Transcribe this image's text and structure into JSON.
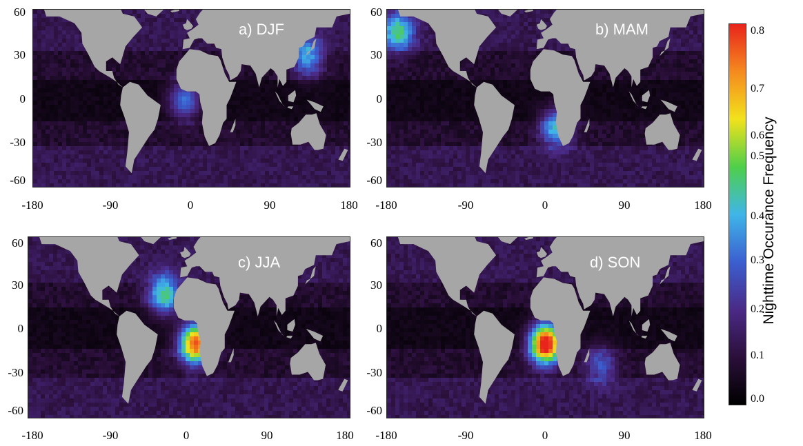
{
  "figure": {
    "colorbar": {
      "label": "Nighttime Occurance Frequency",
      "ticks": [
        "0.8",
        "0.7",
        "0.6",
        "0.5",
        "0.4",
        "0.3",
        "0.2",
        "0.1",
        "0.0"
      ],
      "range": [
        0.0,
        0.8
      ],
      "colors": [
        "#000000",
        "#2b0f3a",
        "#4a2a86",
        "#3b5fd0",
        "#3fb6e8",
        "#4fcf4a",
        "#f2e21c",
        "#f58a1e",
        "#e8241c"
      ]
    },
    "axes": {
      "y_ticks": [
        "60",
        "30",
        "0",
        "-30",
        "-60"
      ],
      "x_ticks": [
        "-180",
        "-90",
        "0",
        "90",
        "180"
      ]
    },
    "land_color": "#a6a6a6",
    "ocean_base_color": "#1e0f2a",
    "panels": [
      {
        "id": "a",
        "title": "a) DJF",
        "hotspots": [
          {
            "lon": -10,
            "lat": 0,
            "value": 0.28
          },
          {
            "lon": 130,
            "lat": 32,
            "value": 0.3
          }
        ]
      },
      {
        "id": "b",
        "title": "b) MAM",
        "hotspots": [
          {
            "lon": -170,
            "lat": 50,
            "value": 0.35
          },
          {
            "lon": 10,
            "lat": -20,
            "value": 0.35
          }
        ]
      },
      {
        "id": "c",
        "title": "c) JJA",
        "hotspots": [
          {
            "lon": 5,
            "lat": -10,
            "value": 0.72
          },
          {
            "lon": -30,
            "lat": 25,
            "value": 0.4
          }
        ]
      },
      {
        "id": "d",
        "title": "d) SON",
        "hotspots": [
          {
            "lon": -2,
            "lat": -10,
            "value": 0.82
          },
          {
            "lon": 60,
            "lat": -25,
            "value": 0.2
          }
        ]
      }
    ]
  }
}
